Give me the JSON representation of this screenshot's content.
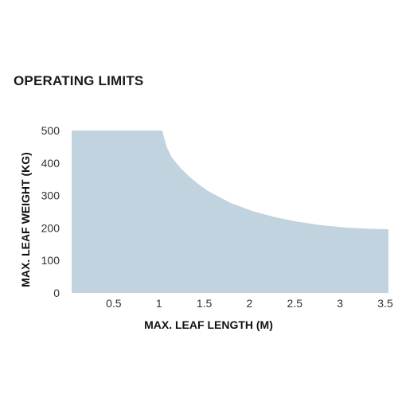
{
  "title": "OPERATING LIMITS",
  "colors": {
    "area_fill": "#c1d3de",
    "text": "#1a1a1a"
  },
  "chart_data": {
    "type": "area",
    "xlabel": "MAX. LEAF LENGTH (M)",
    "ylabel": "MAX. LEAF WEIGHT (KG)",
    "xlim": [
      0,
      3.5
    ],
    "ylim": [
      0,
      500
    ],
    "x_ticks": [
      "0.5",
      "1",
      "1.5",
      "2",
      "2.5",
      "3",
      "3.5"
    ],
    "y_ticks": [
      "0",
      "100",
      "200",
      "300",
      "400",
      "500"
    ],
    "grid": false,
    "series": [
      {
        "x": [
          0,
          1,
          1.05,
          1.1,
          1.2,
          1.3,
          1.4,
          1.5,
          1.75,
          2.0,
          2.25,
          2.5,
          2.75,
          3.0,
          3.25,
          3.5
        ],
        "y": [
          500,
          500,
          450,
          420,
          385,
          358,
          335,
          315,
          278,
          252,
          233,
          219,
          209,
          202,
          198,
          196
        ]
      }
    ]
  }
}
